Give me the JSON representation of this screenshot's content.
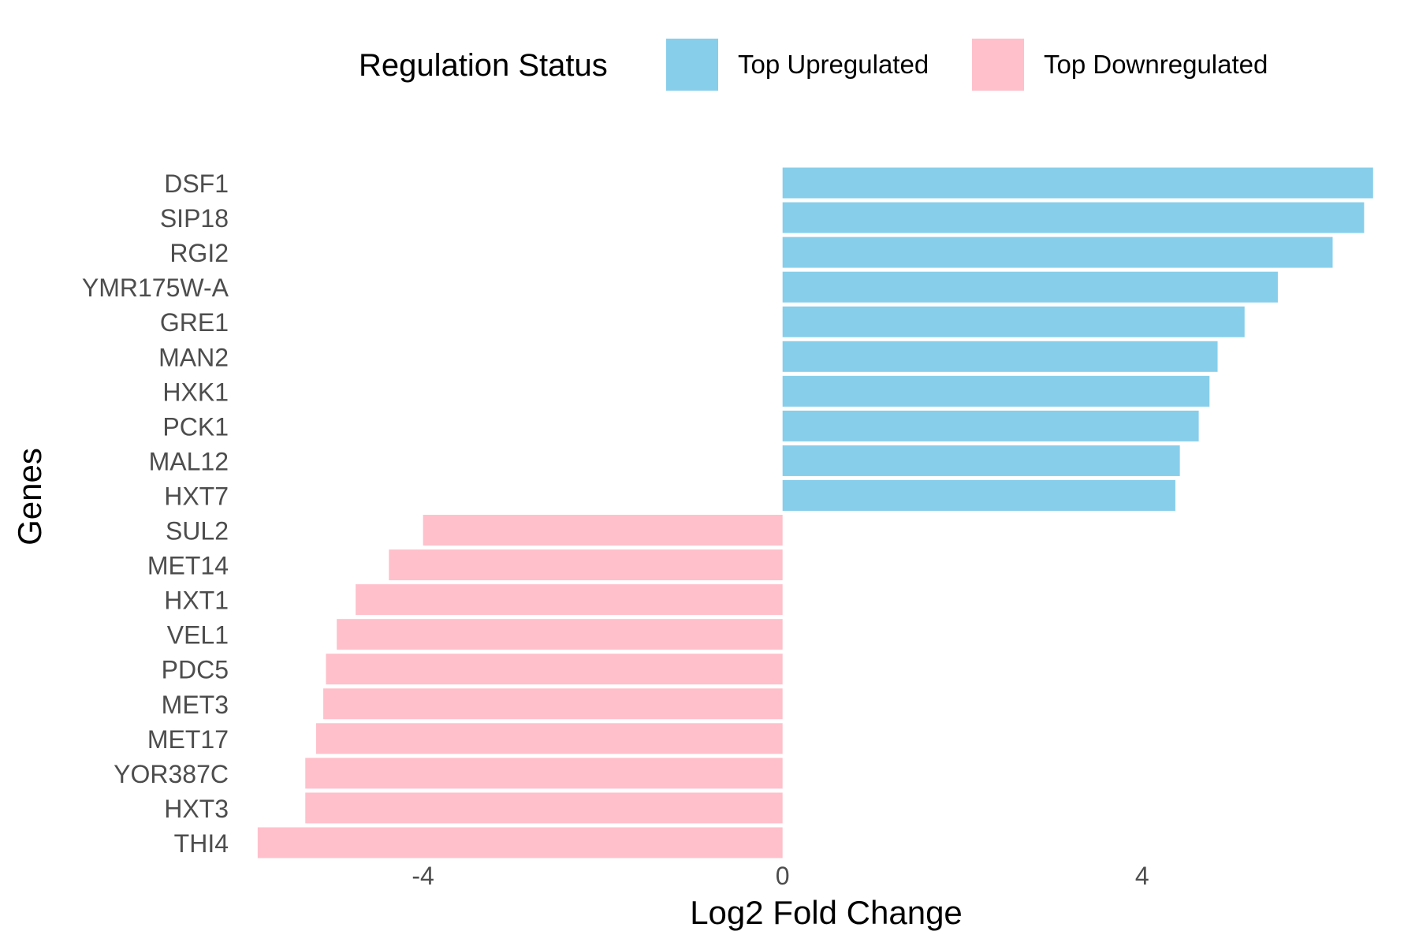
{
  "chart_data": {
    "type": "bar",
    "orientation": "horizontal",
    "xlabel": "Log2 Fold Change",
    "ylabel": "Genes",
    "xlim": [
      -5.9,
      6.8
    ],
    "xticks": [
      -4,
      0,
      4
    ],
    "xtick_labels": [
      "-4",
      "0",
      "4"
    ],
    "grid": false,
    "legend": {
      "title": "Regulation Status",
      "placement": "top",
      "entries": [
        {
          "label": "Top Upregulated",
          "color": "#87CEEB"
        },
        {
          "label": "Top Downregulated",
          "color": "#FFC0CB"
        }
      ]
    },
    "categories": [
      "DSF1",
      "SIP18",
      "RGI2",
      "YMR175W-A",
      "GRE1",
      "MAN2",
      "HXK1",
      "PCK1",
      "MAL12",
      "HXT7",
      "SUL2",
      "MET14",
      "HXT1",
      "VEL1",
      "PDC5",
      "MET3",
      "MET17",
      "YOR387C",
      "HXT3",
      "THI4"
    ],
    "values": [
      6.57,
      6.47,
      6.12,
      5.51,
      5.14,
      4.84,
      4.75,
      4.63,
      4.42,
      4.37,
      -4.0,
      -4.38,
      -4.75,
      -4.96,
      -5.08,
      -5.11,
      -5.19,
      -5.31,
      -5.31,
      -5.84
    ],
    "groups": [
      "Top Upregulated",
      "Top Upregulated",
      "Top Upregulated",
      "Top Upregulated",
      "Top Upregulated",
      "Top Upregulated",
      "Top Upregulated",
      "Top Upregulated",
      "Top Upregulated",
      "Top Upregulated",
      "Top Downregulated",
      "Top Downregulated",
      "Top Downregulated",
      "Top Downregulated",
      "Top Downregulated",
      "Top Downregulated",
      "Top Downregulated",
      "Top Downregulated",
      "Top Downregulated",
      "Top Downregulated"
    ],
    "colors": {
      "Top Upregulated": "#87CEEB",
      "Top Downregulated": "#FFC0CB"
    }
  }
}
